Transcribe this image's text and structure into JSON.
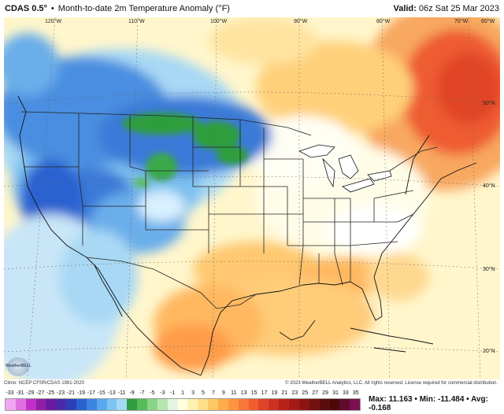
{
  "header": {
    "model": "CDAS 0.5°",
    "bullet": "•",
    "title": "Month-to-date 2m Temperature Anomaly (°F)",
    "valid_label": "Valid:",
    "valid_time": "06z Sat 25 Mar 2023"
  },
  "longitude_labels": [
    "120°W",
    "110°W",
    "100°W",
    "90°W",
    "80°W",
    "70°W",
    "60°W"
  ],
  "latitude_labels": [
    "50°N",
    "40°N",
    "30°N",
    "20°N"
  ],
  "logo_text": "WeatherBELL",
  "credits": {
    "left": "Climo: NCEP CFSR/CDAS 1991-2020",
    "right": "© 2023 WeatherBELL Analytics, LLC. All rights reserved. License required for commercial distribution."
  },
  "colorbar": {
    "ticks": [
      "-33",
      "-31",
      "-29",
      "-27",
      "-25",
      "-23",
      "-21",
      "-19",
      "-17",
      "-15",
      "-13",
      "-11",
      "-9",
      "-7",
      "-5",
      "-3",
      "-1",
      "1",
      "3",
      "5",
      "7",
      "9",
      "11",
      "13",
      "15",
      "17",
      "19",
      "21",
      "23",
      "25",
      "27",
      "29",
      "31",
      "33",
      "35"
    ],
    "colors": [
      "#f0a8f0",
      "#e070e0",
      "#c030c8",
      "#9020a8",
      "#6a1aa0",
      "#4a2aa8",
      "#2a40b8",
      "#2a62d0",
      "#3a86e0",
      "#58a8ec",
      "#7cc4f2",
      "#a4daf6",
      "#2e9e3e",
      "#58bc58",
      "#8ad488",
      "#b8e6b0",
      "#e4f4e0",
      "#ffffe0",
      "#fff2b0",
      "#ffe08a",
      "#ffc866",
      "#ffae48",
      "#ff9440",
      "#f8783a",
      "#ee5c30",
      "#e04428",
      "#cc3020",
      "#b82218",
      "#a41a16",
      "#8c1410",
      "#741010",
      "#5c0c0c",
      "#4a0808",
      "#600a30",
      "#7a1050"
    ]
  },
  "stats": {
    "max_label": "Max:",
    "max": "11.163",
    "min_label": "Min:",
    "min": "-11.484",
    "avg_label": "Avg:",
    "avg": "-0.168"
  }
}
